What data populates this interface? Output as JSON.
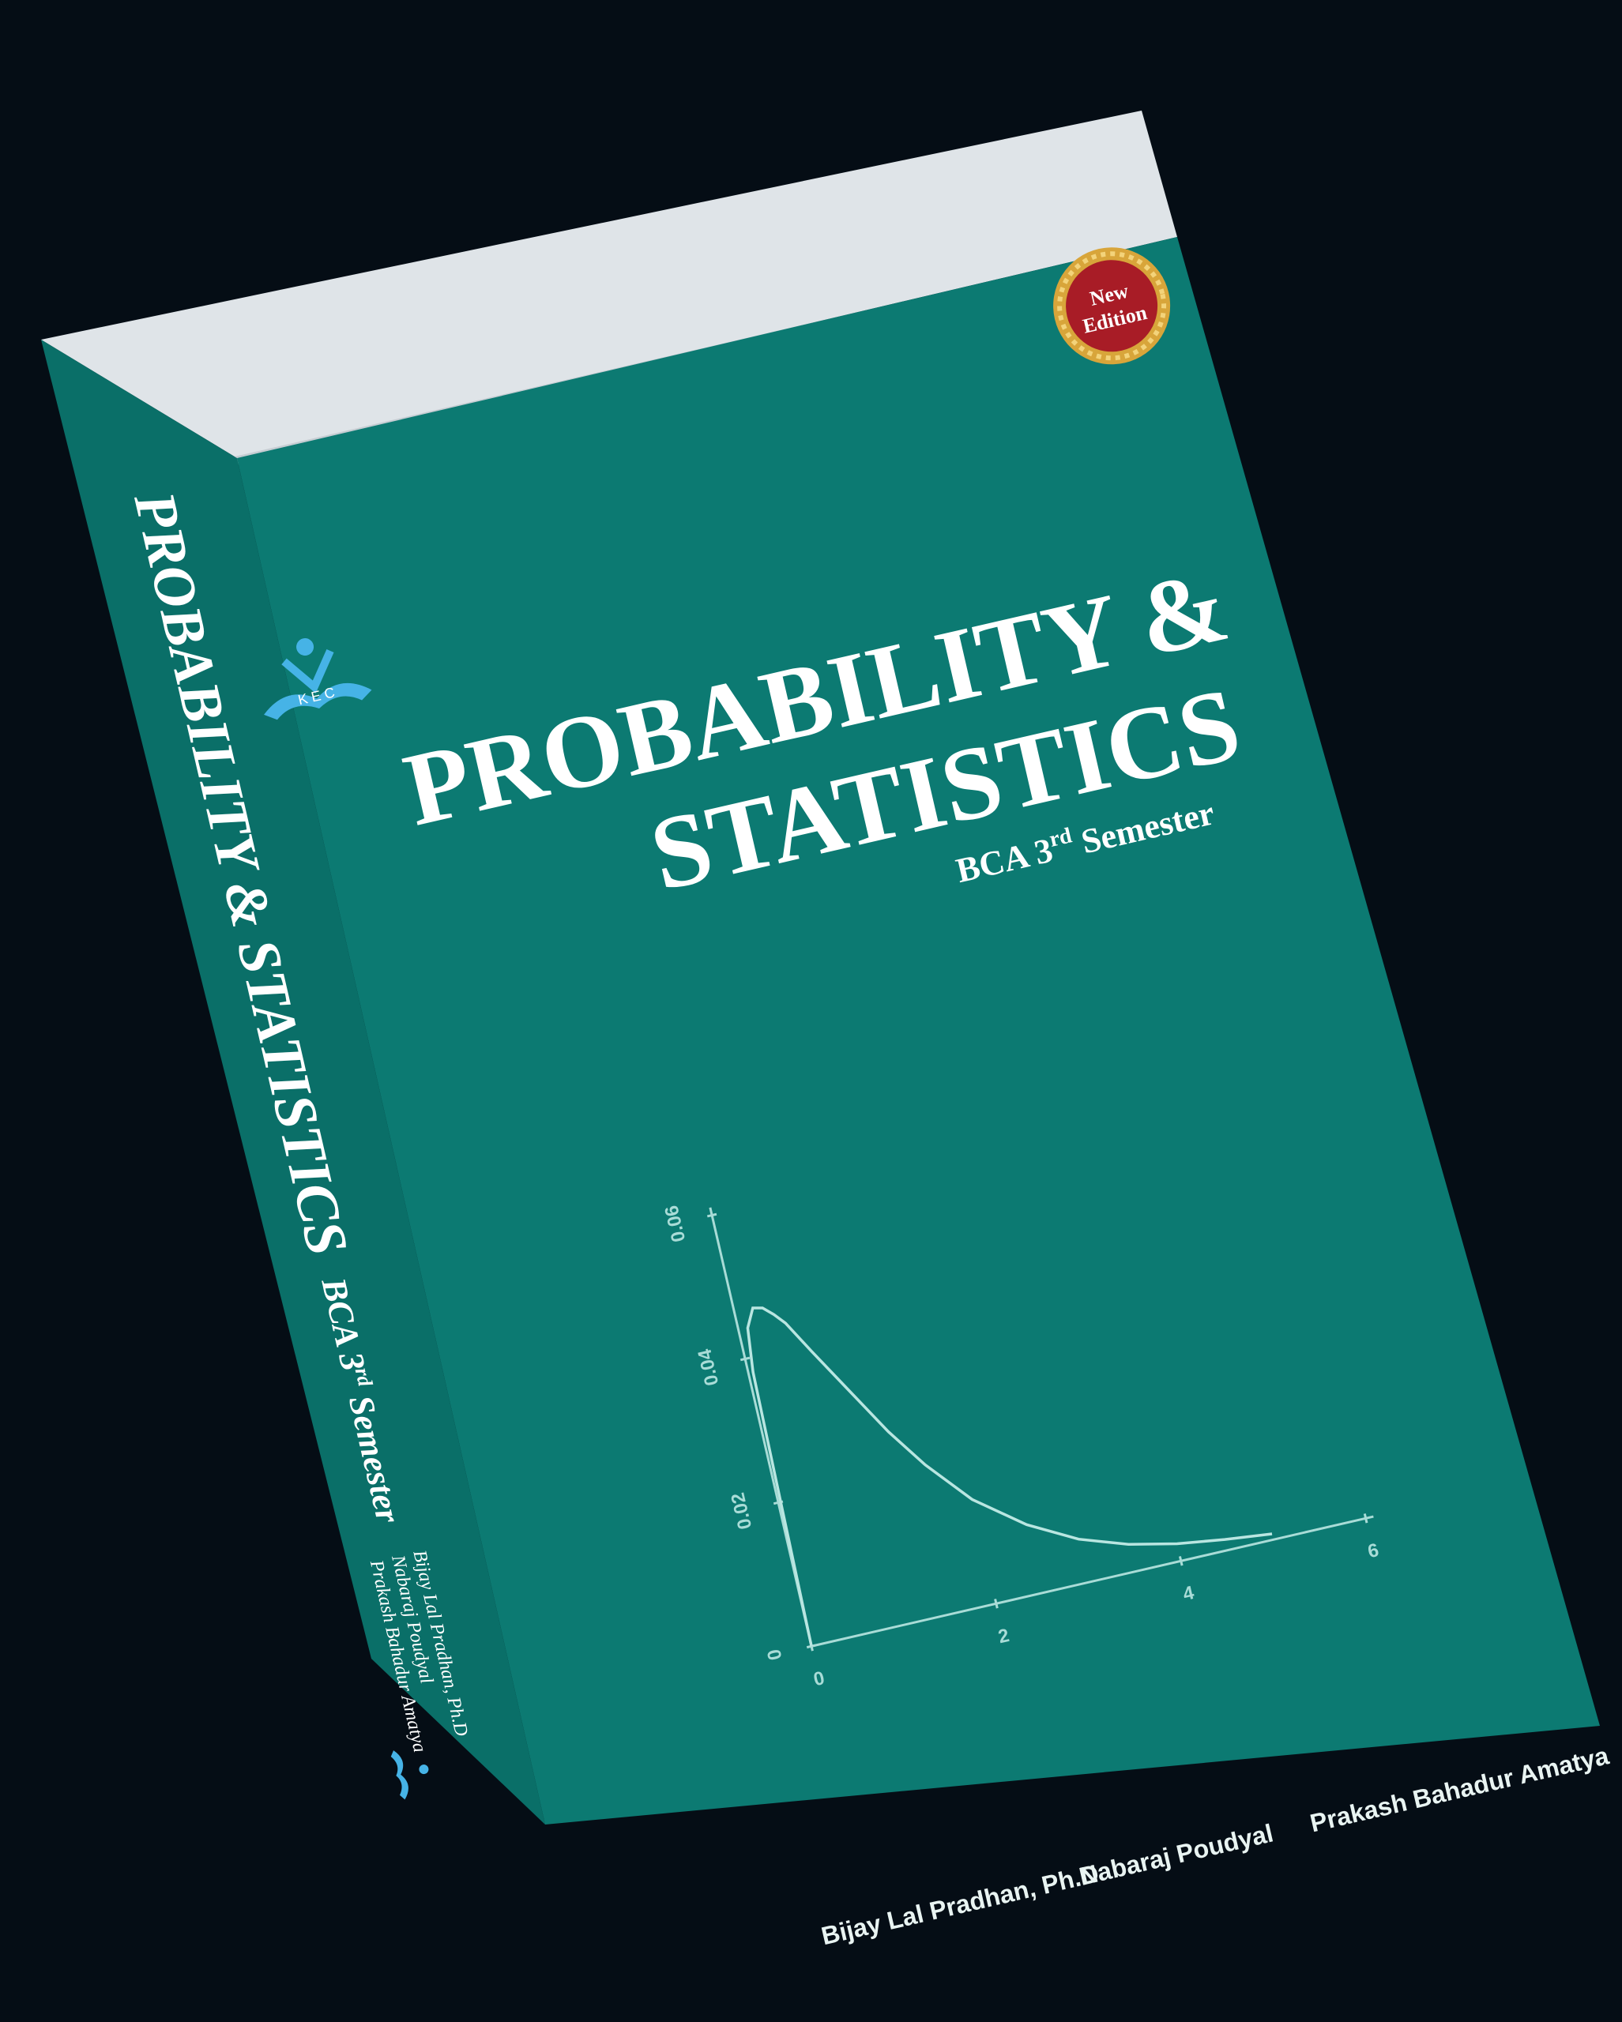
{
  "book": {
    "title_line1": "PROBABILITY &",
    "title_line2": "STATISTICS",
    "subtitle_prefix": "BCA 3",
    "subtitle_superscript": "rd",
    "subtitle_suffix": " Semester",
    "badge_line1": "New",
    "badge_line2": "Edition",
    "logo_letters": "K E C",
    "authors": [
      "Bijay Lal Pradhan, Ph.D",
      "Nabaraj Poudyal",
      "Prakash Bahadur Amatya"
    ],
    "spine": {
      "title": "PROBABILITY & STATISTICS",
      "subtitle_prefix": "BCA 3",
      "subtitle_superscript": "rd",
      "subtitle_suffix": " Semester",
      "authors": [
        "Bijay Lal Pradhan, Ph.D",
        "Nabaraj Poudyal",
        "Prakash Bahadur Amatya"
      ]
    },
    "colors": {
      "cover": "#0c7a72",
      "spine": "#0a6f68",
      "pages": "#dfe4e8",
      "background": "#050d15",
      "badge": "#a81c26",
      "badge_ring": "#d8a53a",
      "logo": "#46b3e6"
    }
  },
  "chart_data": {
    "type": "line",
    "x_ticks": [
      "0",
      "2",
      "4",
      "6"
    ],
    "y_ticks": [
      "0",
      "0.02",
      "0.04",
      "0.06"
    ],
    "xlim": [
      0,
      6
    ],
    "ylim": [
      0,
      0.06
    ],
    "series": [
      {
        "x": [
          0,
          0.05,
          0.1,
          0.2,
          0.3,
          0.4,
          0.5,
          0.7,
          1.0,
          1.3,
          1.6,
          2.0,
          2.5,
          3.0,
          3.5,
          4.0,
          4.5,
          5.0
        ],
        "y": [
          0,
          0.038,
          0.044,
          0.0465,
          0.0462,
          0.045,
          0.0435,
          0.039,
          0.0325,
          0.026,
          0.0205,
          0.0145,
          0.0095,
          0.006,
          0.0038,
          0.0024,
          0.0015,
          0.0008
        ]
      }
    ]
  }
}
